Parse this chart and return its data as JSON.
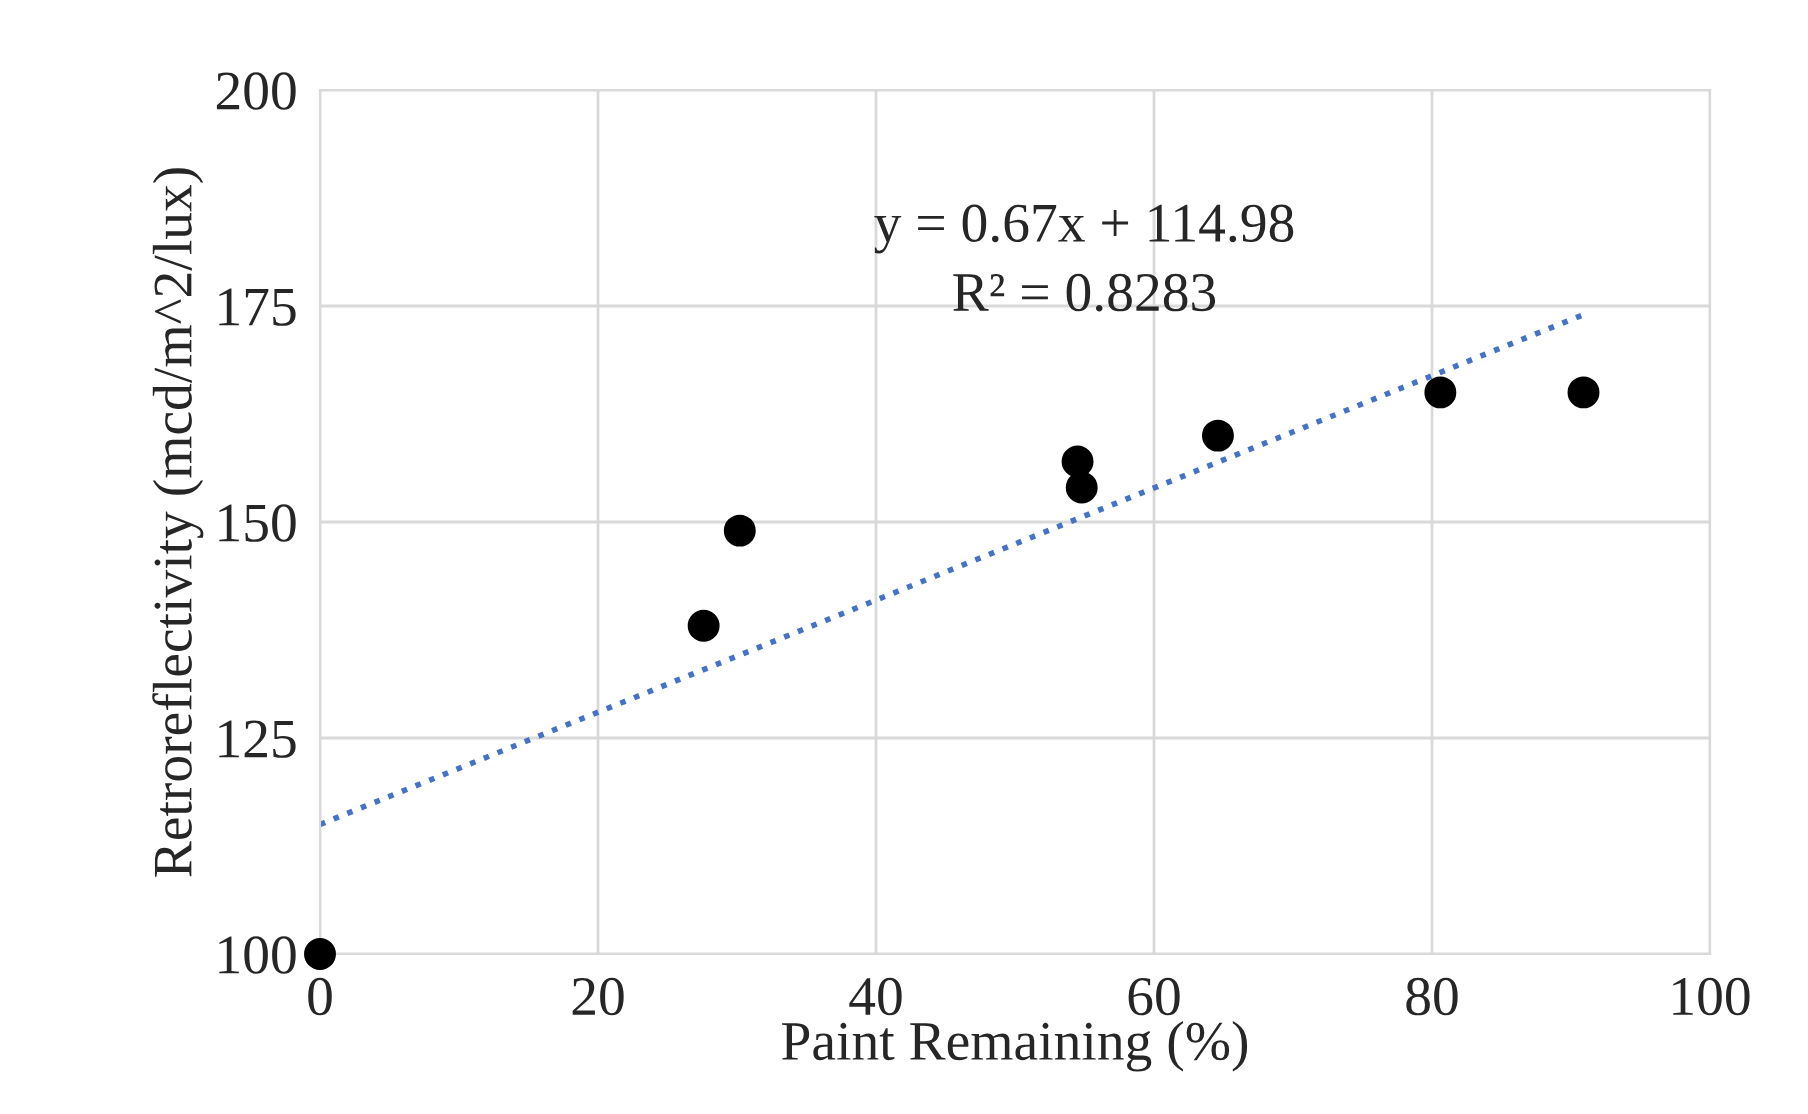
{
  "chart_data": {
    "type": "scatter",
    "xlabel": "Paint Remaining (%)",
    "ylabel": "Retroreflectivity (mcd/m^2/lux)",
    "x": [
      0,
      27.6,
      30.2,
      54.5,
      54.8,
      64.6,
      80.6,
      90.9
    ],
    "series": [
      {
        "color": "#000000",
        "marker": "circle",
        "values": [
          100,
          138,
          149,
          157,
          154,
          160,
          165,
          165
        ]
      },
      {
        "type": "line",
        "color": "#4472c4",
        "line_style": "dotted",
        "marker": "none",
        "x": [
          0,
          90.9
        ],
        "values": [
          115,
          174
        ]
      }
    ],
    "annotations": [
      "y = 0.67x + 114.98",
      "R² = 0.8283"
    ],
    "xlim": [
      0,
      100
    ],
    "xticks": [
      0,
      20,
      40,
      60,
      80,
      100
    ],
    "ylim": [
      100,
      200
    ],
    "yticks": [
      100,
      125,
      150,
      175,
      200
    ],
    "grid": true,
    "legend": false
  }
}
